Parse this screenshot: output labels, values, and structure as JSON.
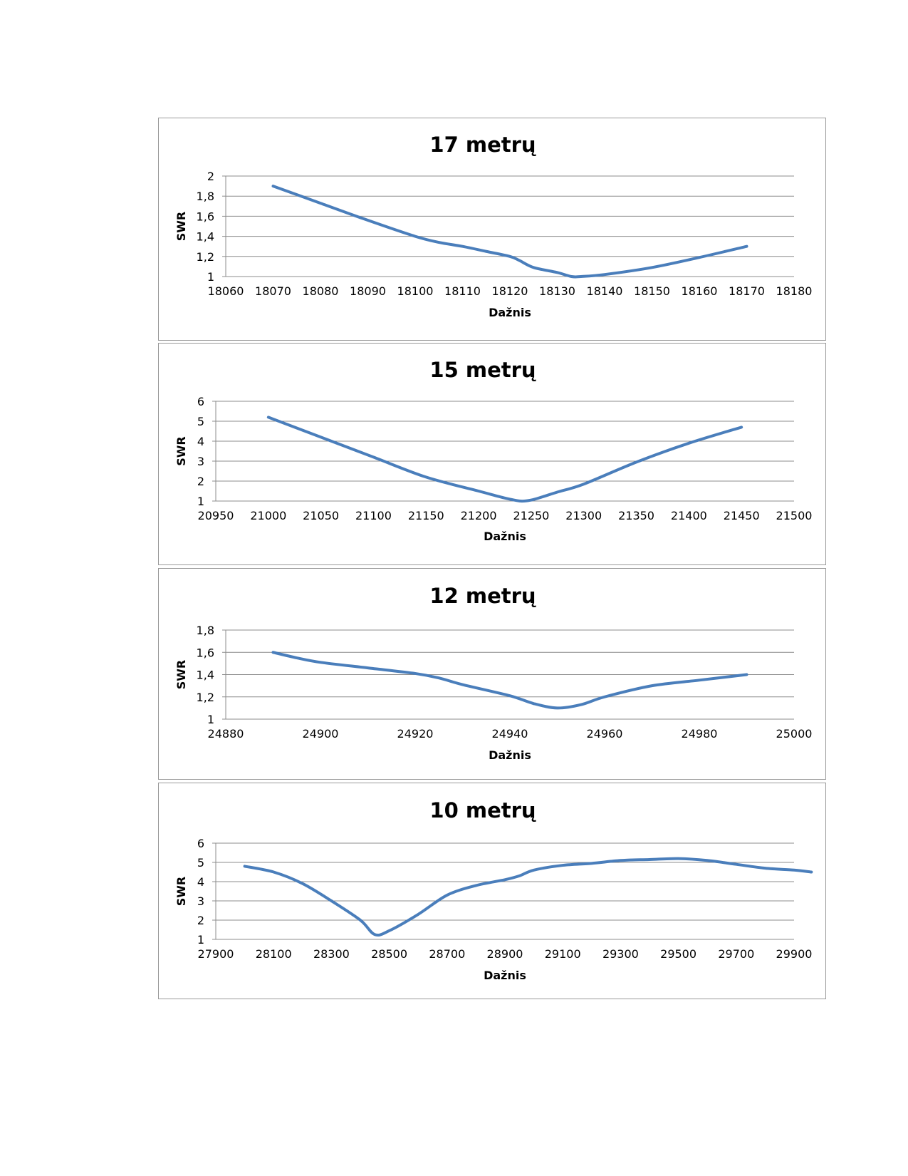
{
  "colors": {
    "series": "#4a7ebb",
    "grid": "#8c8c8c",
    "border": "#9a9a9a"
  },
  "chart_data": [
    {
      "type": "line",
      "title": "17 metrų",
      "xlabel": "Dažnis",
      "ylabel": "SWR",
      "xlim": [
        18060,
        18180
      ],
      "ylim": [
        1,
        2
      ],
      "grid": true,
      "xticks": [
        "18060",
        "18070",
        "18080",
        "18090",
        "18100",
        "18110",
        "18120",
        "18130",
        "18140",
        "18150",
        "18160",
        "18170",
        "18180"
      ],
      "yticks": [
        "1",
        "1,2",
        "1,4",
        "1,6",
        "1,8",
        "2"
      ],
      "x": [
        18070,
        18080,
        18090,
        18100,
        18105,
        18110,
        18115,
        18120,
        18122,
        18125,
        18130,
        18133,
        18135,
        18140,
        18150,
        18160,
        18170
      ],
      "y": [
        1.9,
        1.73,
        1.56,
        1.4,
        1.34,
        1.3,
        1.25,
        1.2,
        1.16,
        1.09,
        1.04,
        1.0,
        1.0,
        1.02,
        1.09,
        1.19,
        1.3
      ]
    },
    {
      "type": "line",
      "title": "15 metrų",
      "xlabel": "Dažnis",
      "ylabel": "SWR",
      "xlim": [
        20950,
        21500
      ],
      "ylim": [
        1,
        6
      ],
      "grid": true,
      "xticks": [
        "20950",
        "21000",
        "21050",
        "21100",
        "21150",
        "21200",
        "21250",
        "21300",
        "21350",
        "21400",
        "21450",
        "21500"
      ],
      "yticks": [
        "1",
        "2",
        "3",
        "4",
        "5",
        "6"
      ],
      "x": [
        21000,
        21050,
        21100,
        21150,
        21200,
        21225,
        21240,
        21250,
        21260,
        21275,
        21300,
        21350,
        21400,
        21450
      ],
      "y": [
        5.2,
        4.2,
        3.2,
        2.2,
        1.5,
        1.15,
        1.0,
        1.05,
        1.2,
        1.45,
        1.85,
        2.95,
        3.9,
        4.7
      ]
    },
    {
      "type": "line",
      "title": "12 metrų",
      "xlabel": "Dažnis",
      "ylabel": "SWR",
      "xlim": [
        24880,
        25000
      ],
      "ylim": [
        1,
        1.8
      ],
      "grid": true,
      "xticks": [
        "24880",
        "24900",
        "24920",
        "24940",
        "24960",
        "24980",
        "25000"
      ],
      "yticks": [
        "1",
        "1,2",
        "1,4",
        "1,6",
        "1,8"
      ],
      "x": [
        24890,
        24895,
        24900,
        24910,
        24920,
        24925,
        24930,
        24940,
        24945,
        24950,
        24955,
        24960,
        24970,
        24980,
        24990
      ],
      "y": [
        1.6,
        1.55,
        1.51,
        1.46,
        1.41,
        1.37,
        1.31,
        1.21,
        1.14,
        1.1,
        1.13,
        1.2,
        1.3,
        1.35,
        1.4
      ]
    },
    {
      "type": "line",
      "title": "10 metrų",
      "xlabel": "Dažnis",
      "ylabel": "SWR",
      "xlim": [
        27900,
        29900
      ],
      "ylim": [
        1,
        6
      ],
      "grid": true,
      "xticks": [
        "27900",
        "28100",
        "28300",
        "28500",
        "28700",
        "28900",
        "29100",
        "29300",
        "29500",
        "29700",
        "29900"
      ],
      "yticks": [
        "1",
        "2",
        "3",
        "4",
        "5",
        "6"
      ],
      "x": [
        28000,
        28100,
        28200,
        28300,
        28400,
        28450,
        28500,
        28600,
        28700,
        28800,
        28900,
        28950,
        29000,
        29100,
        29200,
        29300,
        29400,
        29500,
        29600,
        29700,
        29800,
        29900,
        29960
      ],
      "y": [
        4.8,
        4.5,
        3.9,
        3.0,
        2.0,
        1.25,
        1.45,
        2.3,
        3.3,
        3.8,
        4.1,
        4.3,
        4.6,
        4.85,
        4.95,
        5.1,
        5.15,
        5.2,
        5.1,
        4.9,
        4.7,
        4.6,
        4.5
      ]
    }
  ]
}
